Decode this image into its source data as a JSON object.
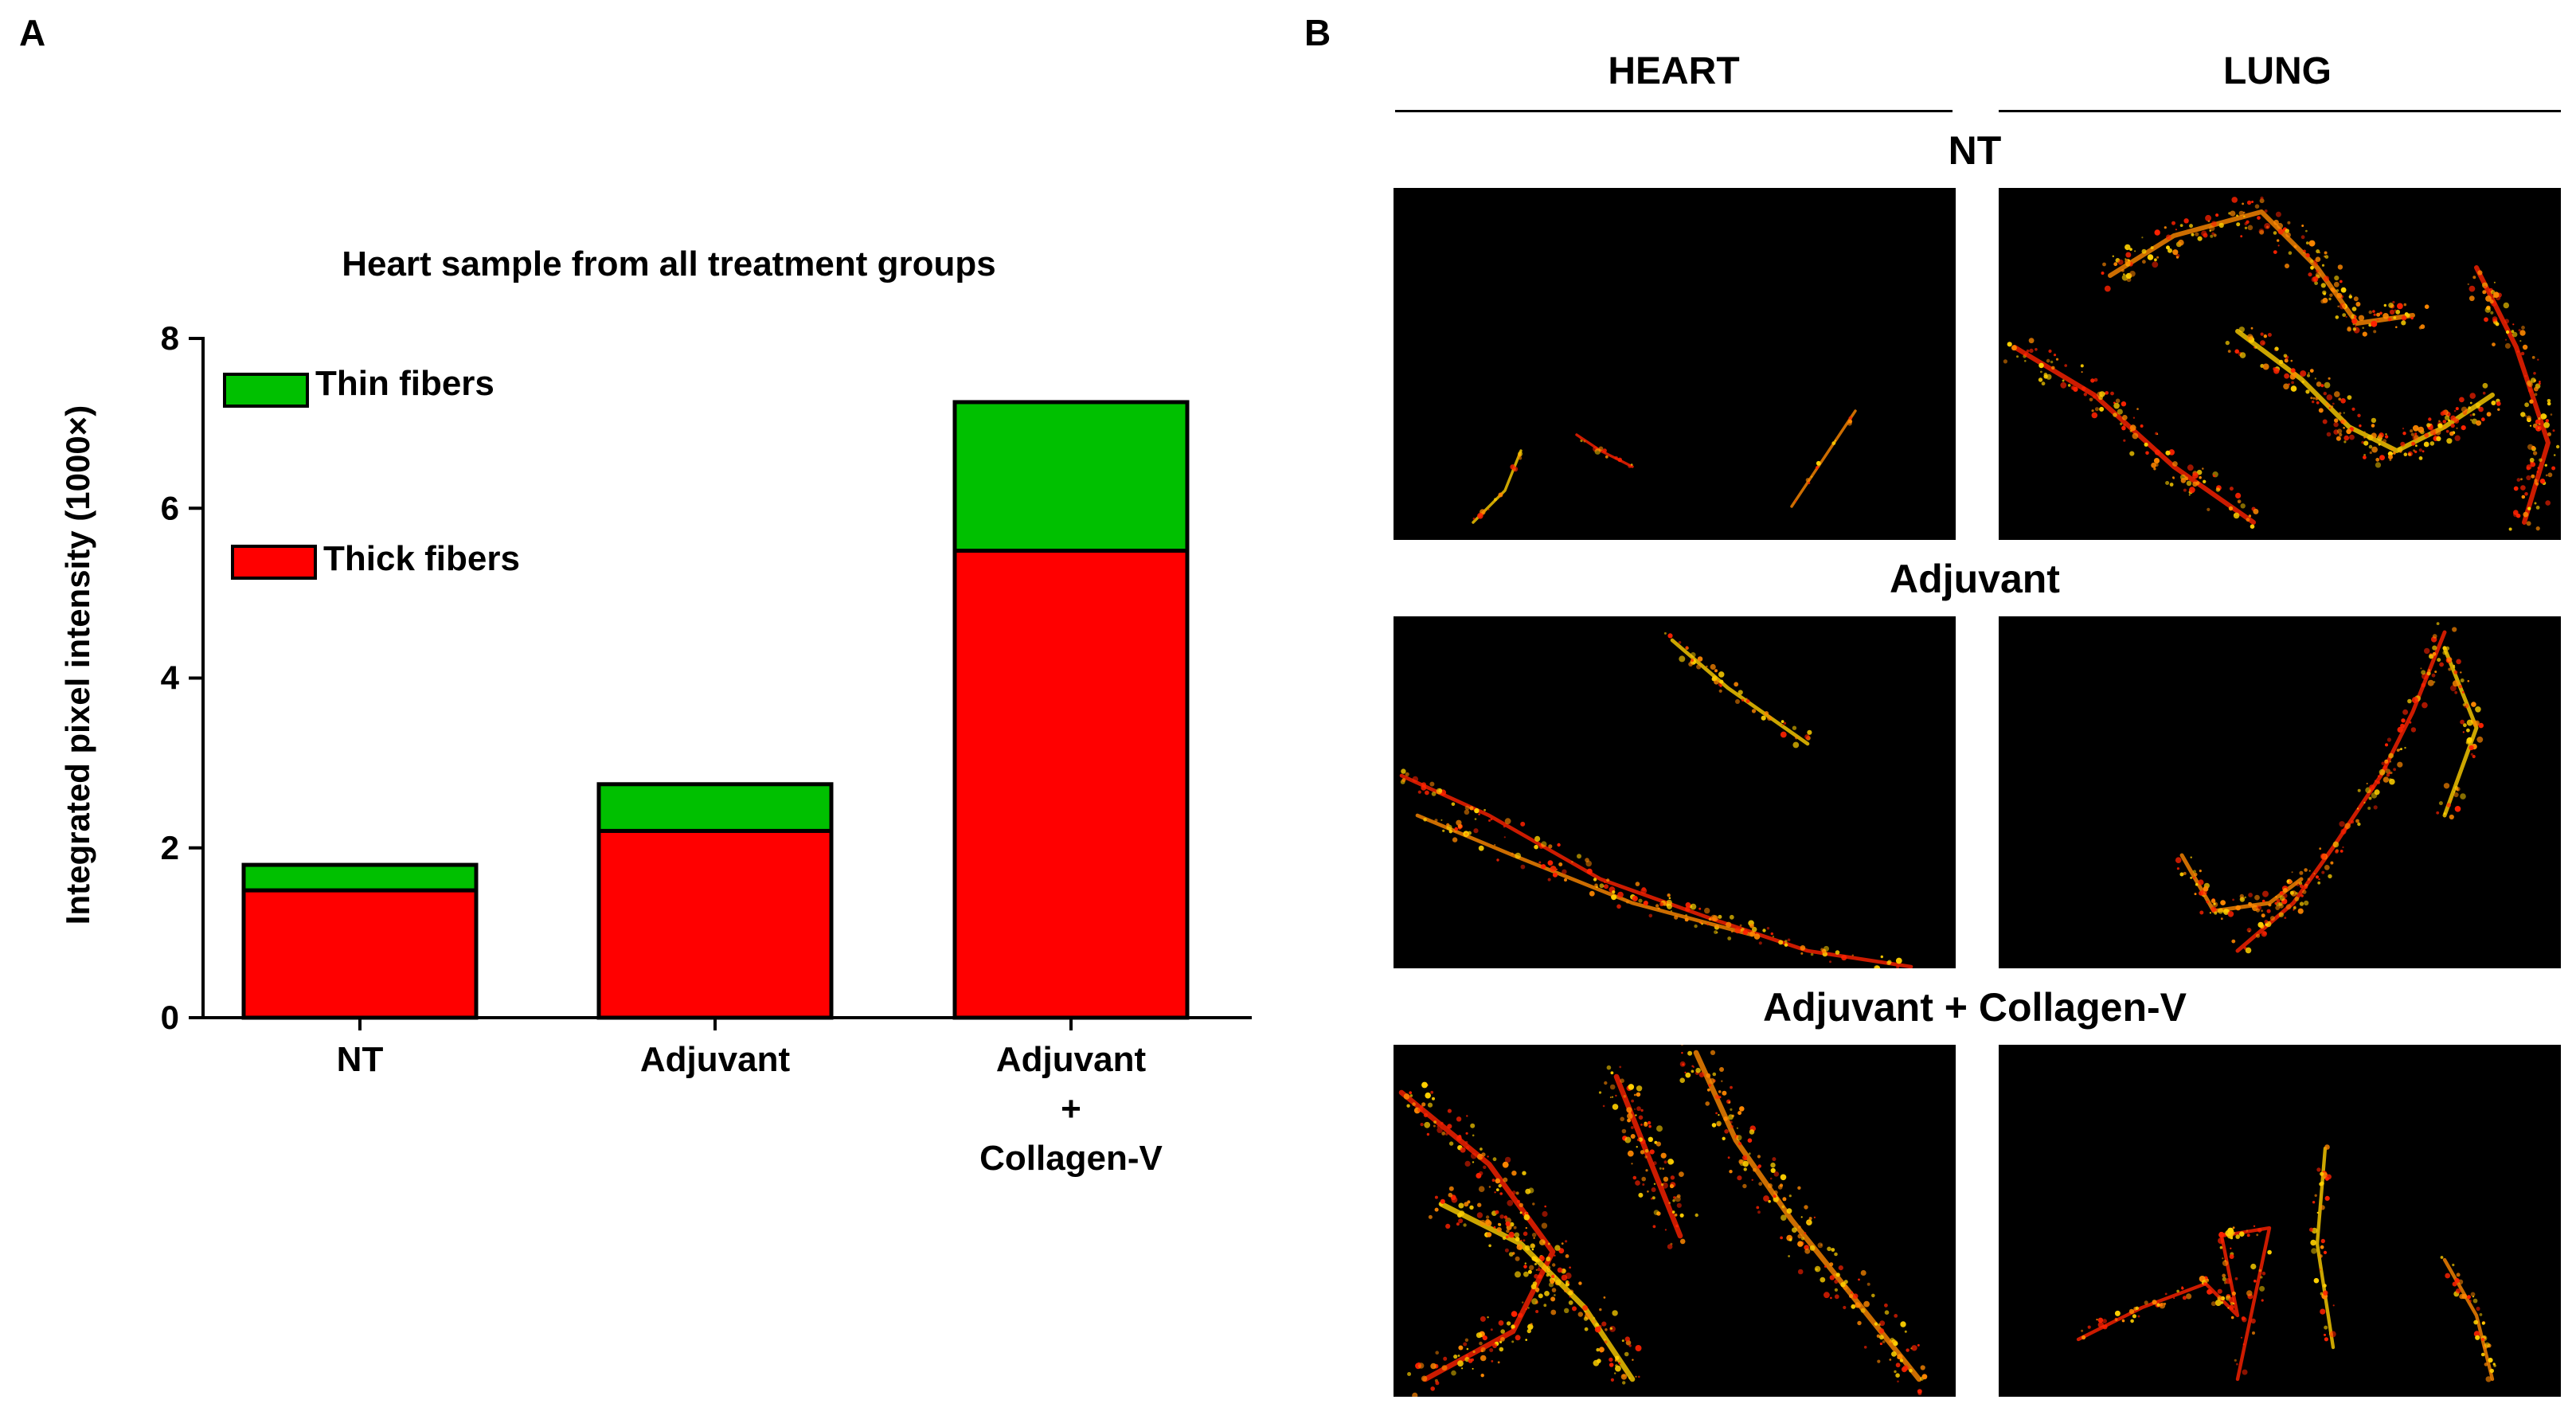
{
  "panels": {
    "a_letter": "A",
    "b_letter": "B"
  },
  "chart_data": {
    "type": "bar",
    "stacked": true,
    "title": "Heart sample from all treatment groups",
    "xlabel": "",
    "ylabel": "Integrated pixel intensity (1000×)",
    "ylim": [
      0,
      8
    ],
    "yticks": [
      "0",
      "2",
      "4",
      "6",
      "8"
    ],
    "categories": [
      [
        "NT"
      ],
      [
        "Adjuvant"
      ],
      [
        "Adjuvant",
        "+",
        "Collagen-V"
      ]
    ],
    "series": [
      {
        "name": "Thick fibers",
        "color": "#ff0000",
        "values": [
          1.5,
          2.2,
          5.5
        ]
      },
      {
        "name": "Thin fibers",
        "color": "#00c000",
        "values": [
          0.3,
          0.55,
          1.75
        ]
      }
    ],
    "legend_position": "top-left",
    "grid": false
  },
  "micrographs": {
    "columns": [
      "HEART",
      "LUNG"
    ],
    "rows": [
      "NT",
      "Adjuvant",
      "Adjuvant + Collagen-V"
    ]
  },
  "colors": {
    "fiber_red": "#ff2200",
    "fiber_orange": "#ff8800",
    "fiber_yellow": "#ffd000",
    "background": "#000000"
  }
}
